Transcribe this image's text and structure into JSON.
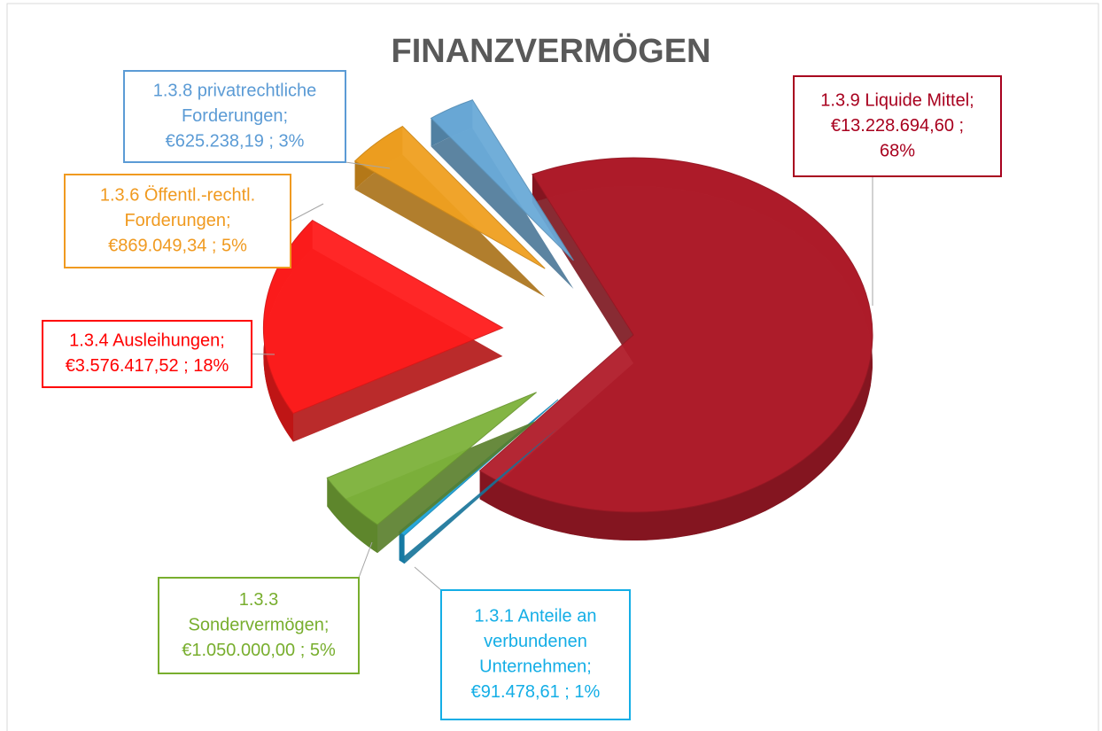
{
  "chart_data": {
    "type": "pie",
    "title": "FINANZVERMÖGEN",
    "data_labels": [
      [
        "1.3.9 Liquide Mittel;",
        "€13.228.694,60 ;",
        "68%"
      ],
      [
        "1.3.1 Anteile an",
        "verbundenen",
        "Unternehmen;",
        "€91.478,61 ; 1%"
      ],
      [
        "1.3.3",
        "Sondervermögen;",
        "€1.050.000,00 ; 5%"
      ],
      [
        "1.3.4 Ausleihungen;",
        "€3.576.417,52 ; 18%"
      ],
      [
        "1.3.6 Öffentl.-rechtl.",
        "Forderungen;",
        "€869.049,34 ; 5%"
      ],
      [
        "1.3.8 privatrechtliche",
        "Forderungen;",
        "€625.238,19 ; 3%"
      ]
    ],
    "values": [
      13228694.6,
      91478.61,
      1050000.0,
      3576417.52,
      869049.34,
      625238.19
    ],
    "percentages": [
      68,
      1,
      5,
      18,
      5,
      3
    ],
    "colors": [
      "#b01c2a",
      "#1ca3d9",
      "#7db23a",
      "#ff1c1c",
      "#f0a020",
      "#6aaad8"
    ],
    "label_colors": [
      "#a8001e",
      "#14aee6",
      "#78ae2e",
      "#ff0000",
      "#f09a20",
      "#5b9bd5"
    ]
  }
}
